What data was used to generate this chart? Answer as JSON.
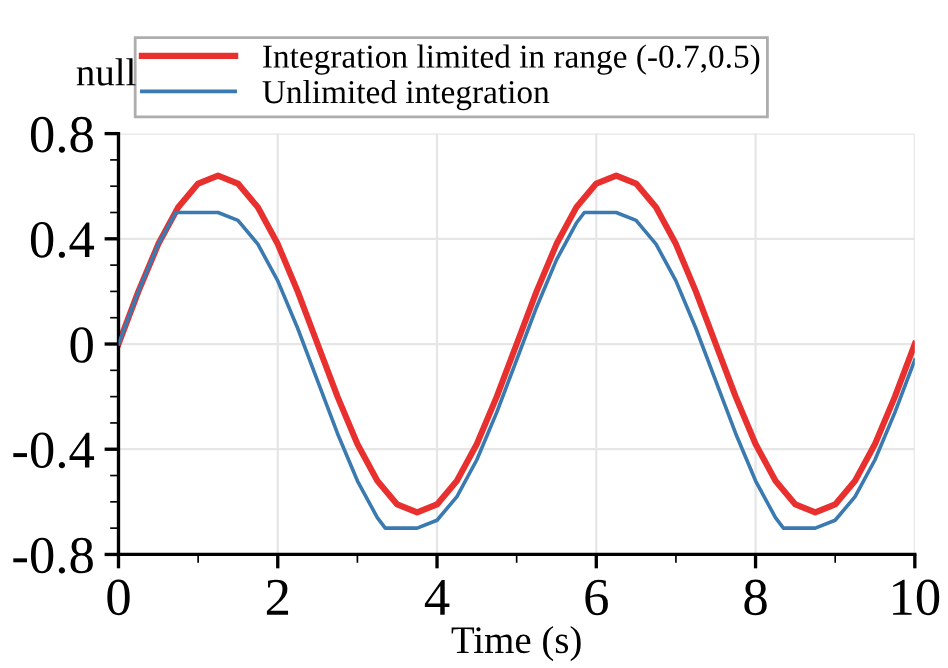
{
  "chart_data": {
    "type": "line",
    "xlabel": "Time (s)",
    "ylabel": "null",
    "xlim": [
      0,
      10
    ],
    "xticks": [
      0,
      2,
      4,
      6,
      8,
      10
    ],
    "ylim": [
      -0.8,
      0.8
    ],
    "yticks": [
      -0.8,
      -0.4,
      0,
      0.4,
      0.8
    ],
    "grid": true,
    "legend": "top left",
    "line_style": "solid",
    "marker": "none",
    "series": [
      {
        "name": "Integration limited in range (-0.7,0.5)",
        "color": "#e8312f",
        "x": [
          0,
          0.25,
          0.5,
          0.75,
          1,
          1.25,
          1.5,
          1.75,
          2,
          2.25,
          2.5,
          2.75,
          3,
          3.25,
          3.5,
          3.75,
          4,
          4.25,
          4.5,
          4.75,
          5,
          5.25,
          5.5,
          5.75,
          6,
          6.25,
          6.5,
          6.75,
          7,
          7.25,
          7.5,
          7.75,
          8,
          8.25,
          8.5,
          8.75,
          9,
          9.25,
          9.5,
          9.75,
          10
        ],
        "values": [
          0,
          0.2,
          0.38,
          0.52,
          0.61,
          0.64,
          0.61,
          0.52,
          0.38,
          0.2,
          0,
          -0.2,
          -0.38,
          -0.52,
          -0.61,
          -0.64,
          -0.61,
          -0.52,
          -0.38,
          -0.2,
          0,
          0.2,
          0.38,
          0.52,
          0.61,
          0.64,
          0.61,
          0.52,
          0.38,
          0.2,
          0,
          -0.2,
          -0.38,
          -0.52,
          -0.61,
          -0.64,
          -0.61,
          -0.52,
          -0.38,
          -0.2,
          0
        ]
      },
      {
        "name": "Unlimited integration",
        "color": "#3a7ab0",
        "x": [
          0,
          0.25,
          0.5,
          0.72,
          1.25,
          1.5,
          1.75,
          2,
          2.25,
          2.5,
          2.75,
          3,
          3.25,
          3.35,
          3.75,
          4,
          4.25,
          4.5,
          4.75,
          5,
          5.25,
          5.5,
          5.75,
          5.85,
          6.25,
          6.5,
          6.75,
          7,
          7.25,
          7.5,
          7.75,
          8,
          8.25,
          8.35,
          8.75,
          9,
          9.25,
          9.5,
          9.75,
          10
        ],
        "values": [
          0,
          0.2,
          0.38,
          0.5,
          0.5,
          0.47,
          0.38,
          0.24,
          0.06,
          -0.14,
          -0.34,
          -0.52,
          -0.66,
          -0.7,
          -0.7,
          -0.67,
          -0.58,
          -0.44,
          -0.26,
          -0.06,
          0.14,
          0.32,
          0.46,
          0.5,
          0.5,
          0.47,
          0.38,
          0.24,
          0.06,
          -0.14,
          -0.34,
          -0.52,
          -0.66,
          -0.7,
          -0.7,
          -0.67,
          -0.58,
          -0.44,
          -0.26,
          -0.06
        ]
      }
    ]
  }
}
